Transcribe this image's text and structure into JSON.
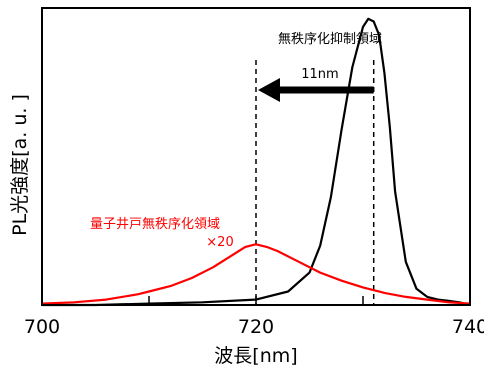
{
  "chart_data": {
    "type": "line",
    "ylabel": "PL光強度[a. u. ]",
    "xlabel": "波長[nm]",
    "x_ticks": [
      "700",
      "720",
      "740"
    ],
    "xlim": [
      700,
      740
    ],
    "ylim": [
      0,
      1.1
    ],
    "grid": false,
    "series": [
      {
        "color": "#000000",
        "x": [
          700,
          705,
          710,
          715,
          720,
          723,
          725,
          726,
          727,
          728,
          729,
          730,
          730.5,
          731,
          731.5,
          732,
          732.5,
          733,
          734,
          735,
          736,
          737,
          738,
          739,
          740
        ],
        "values": [
          0.0,
          0.0,
          0.005,
          0.01,
          0.02,
          0.05,
          0.12,
          0.22,
          0.4,
          0.65,
          0.88,
          1.03,
          1.06,
          1.05,
          1.0,
          0.86,
          0.66,
          0.42,
          0.16,
          0.06,
          0.03,
          0.02,
          0.015,
          0.01,
          0.0
        ]
      },
      {
        "color": "#ff0000",
        "x": [
          700,
          703,
          706,
          709,
          710,
          712,
          714,
          716,
          718,
          719,
          720,
          721,
          722,
          724,
          726,
          728,
          730,
          732,
          734,
          736,
          738,
          740
        ],
        "values": [
          0.005,
          0.01,
          0.02,
          0.04,
          0.05,
          0.07,
          0.1,
          0.14,
          0.19,
          0.215,
          0.225,
          0.215,
          0.2,
          0.16,
          0.12,
          0.09,
          0.065,
          0.045,
          0.03,
          0.02,
          0.01,
          0.005
        ]
      }
    ],
    "annotations": {
      "disorder_region_label": "無秩序化抑制領域",
      "shift_label": "11nm",
      "qw_label": "量子井戸無秩序化領域",
      "qw_scale": "×20",
      "dashed_lines_x": [
        720,
        731
      ]
    }
  }
}
